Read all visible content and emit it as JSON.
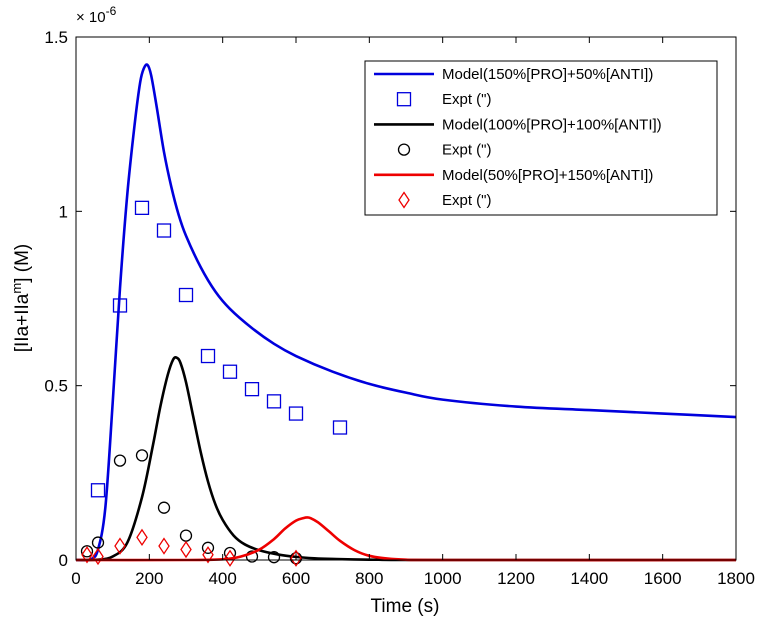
{
  "chart_data": {
    "type": "line",
    "xlabel": "Time (s)",
    "ylabel_main": "[IIa+IIa",
    "ylabel_sup": "m",
    "ylabel_end": "] (M)",
    "y_multiplier": "× 10",
    "y_exponent": "-6",
    "xlim": [
      0,
      1800
    ],
    "ylim": [
      0,
      1.5
    ],
    "xticks": [
      0,
      200,
      400,
      600,
      800,
      1000,
      1200,
      1400,
      1600,
      1800
    ],
    "yticks": [
      0,
      0.5,
      1,
      1.5
    ],
    "ytick_labels": [
      "0",
      "0.5",
      "1",
      "1.5"
    ],
    "legend_position": "top-right",
    "series": [
      {
        "name": "Model(150%[PRO]+50%[ANTI])",
        "kind": "line",
        "color": "#0000dd",
        "x": [
          0,
          40,
          60,
          80,
          100,
          120,
          140,
          160,
          175,
          185,
          195,
          205,
          220,
          240,
          260,
          280,
          300,
          340,
          380,
          420,
          480,
          540,
          600,
          700,
          800,
          900,
          1000,
          1200,
          1400,
          1600,
          1800
        ],
        "y": [
          0,
          0.002,
          0.03,
          0.15,
          0.45,
          0.78,
          1.05,
          1.25,
          1.37,
          1.41,
          1.42,
          1.39,
          1.3,
          1.17,
          1.07,
          0.99,
          0.93,
          0.84,
          0.77,
          0.72,
          0.665,
          0.62,
          0.585,
          0.54,
          0.505,
          0.48,
          0.46,
          0.44,
          0.43,
          0.42,
          0.41
        ]
      },
      {
        "name": "Expt (\")",
        "kind": "marker",
        "marker": "square",
        "color": "#0000dd",
        "x": [
          60,
          120,
          180,
          240,
          300,
          360,
          420,
          480,
          540,
          600,
          720
        ],
        "y": [
          0.2,
          0.73,
          1.01,
          0.945,
          0.76,
          0.585,
          0.54,
          0.49,
          0.455,
          0.42,
          0.38
        ]
      },
      {
        "name": "Model(100%[PRO]+100%[ANTI])",
        "kind": "line",
        "color": "#000000",
        "x": [
          0,
          60,
          100,
          140,
          180,
          210,
          230,
          250,
          265,
          275,
          285,
          300,
          320,
          340,
          360,
          380,
          400,
          430,
          460,
          500,
          550,
          600,
          650,
          700,
          800,
          1000,
          1800
        ],
        "y": [
          0,
          0.001,
          0.01,
          0.05,
          0.18,
          0.33,
          0.44,
          0.53,
          0.575,
          0.58,
          0.565,
          0.51,
          0.41,
          0.31,
          0.225,
          0.16,
          0.115,
          0.07,
          0.045,
          0.028,
          0.016,
          0.009,
          0.005,
          0.003,
          0.001,
          0,
          0
        ]
      },
      {
        "name": "Expt (\")",
        "kind": "marker",
        "marker": "circle",
        "color": "#000000",
        "x": [
          30,
          60,
          120,
          180,
          240,
          300,
          360,
          420,
          480,
          540,
          600
        ],
        "y": [
          0.025,
          0.05,
          0.285,
          0.3,
          0.15,
          0.07,
          0.035,
          0.02,
          0.01,
          0.008,
          0.005
        ]
      },
      {
        "name": "Model(50%[PRO]+150%[ANTI])",
        "kind": "line",
        "color": "#ee0000",
        "x": [
          0,
          300,
          400,
          450,
          500,
          540,
          570,
          600,
          620,
          630,
          640,
          660,
          690,
          720,
          760,
          800,
          850,
          900,
          1000,
          1800
        ],
        "y": [
          0,
          0,
          0.002,
          0.01,
          0.03,
          0.06,
          0.09,
          0.113,
          0.12,
          0.122,
          0.12,
          0.108,
          0.082,
          0.055,
          0.028,
          0.012,
          0.004,
          0.001,
          0,
          0
        ]
      },
      {
        "name": "Expt (\")",
        "kind": "marker",
        "marker": "diamond",
        "color": "#ee0000",
        "x": [
          30,
          60,
          120,
          180,
          240,
          300,
          360,
          420,
          600
        ],
        "y": [
          0.015,
          0.01,
          0.04,
          0.065,
          0.04,
          0.03,
          0.015,
          0.005,
          0.005
        ]
      }
    ]
  }
}
